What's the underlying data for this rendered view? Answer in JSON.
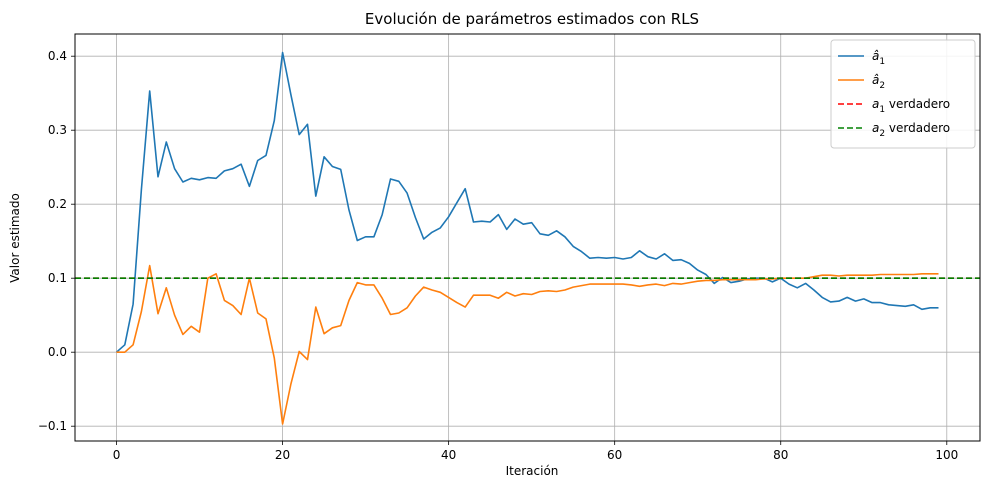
{
  "chart_data": {
    "type": "line",
    "title": "Evolución de parámetros estimados con RLS",
    "xlabel": "Iteración",
    "ylabel": "Valor estimado",
    "xlim": [
      -5,
      104
    ],
    "ylim": [
      -0.12,
      0.43
    ],
    "xticks": [
      0,
      20,
      40,
      60,
      80,
      100
    ],
    "yticks": [
      -0.1,
      0.0,
      0.1,
      0.2,
      0.3,
      0.4
    ],
    "xtick_labels": [
      "0",
      "20",
      "40",
      "60",
      "80",
      "100"
    ],
    "ytick_labels": [
      "−0.1",
      "0.0",
      "0.1",
      "0.2",
      "0.3",
      "0.4"
    ],
    "grid": true,
    "legend_position": "top-right",
    "series": [
      {
        "name": "â1",
        "color": "#1f77b4",
        "style": "solid",
        "x": [
          0,
          1,
          2,
          3,
          4,
          5,
          6,
          7,
          8,
          9,
          10,
          11,
          12,
          13,
          14,
          15,
          16,
          17,
          18,
          19,
          20,
          21,
          22,
          23,
          24,
          25,
          26,
          27,
          28,
          29,
          30,
          31,
          32,
          33,
          34,
          35,
          36,
          37,
          38,
          39,
          40,
          41,
          42,
          43,
          44,
          45,
          46,
          47,
          48,
          49,
          50,
          51,
          52,
          53,
          54,
          55,
          56,
          57,
          58,
          59,
          60,
          61,
          62,
          63,
          64,
          65,
          66,
          67,
          68,
          69,
          70,
          71,
          72,
          73,
          74,
          75,
          76,
          77,
          78,
          79,
          80,
          81,
          82,
          83,
          84,
          85,
          86,
          87,
          88,
          89,
          90,
          91,
          92,
          93,
          94,
          95,
          96,
          97,
          98,
          99
        ],
        "values": [
          0.0,
          0.01,
          0.065,
          0.22,
          0.353,
          0.237,
          0.284,
          0.248,
          0.23,
          0.235,
          0.233,
          0.236,
          0.235,
          0.245,
          0.248,
          0.254,
          0.224,
          0.259,
          0.266,
          0.313,
          0.405,
          0.348,
          0.294,
          0.308,
          0.211,
          0.264,
          0.251,
          0.247,
          0.192,
          0.151,
          0.156,
          0.156,
          0.186,
          0.234,
          0.231,
          0.215,
          0.182,
          0.153,
          0.162,
          0.168,
          0.183,
          0.202,
          0.221,
          0.176,
          0.177,
          0.176,
          0.186,
          0.166,
          0.18,
          0.173,
          0.175,
          0.16,
          0.158,
          0.164,
          0.156,
          0.143,
          0.136,
          0.127,
          0.128,
          0.127,
          0.128,
          0.126,
          0.128,
          0.137,
          0.129,
          0.126,
          0.133,
          0.124,
          0.125,
          0.12,
          0.111,
          0.105,
          0.093,
          0.101,
          0.094,
          0.096,
          0.099,
          0.1,
          0.1,
          0.095,
          0.1,
          0.092,
          0.087,
          0.093,
          0.084,
          0.074,
          0.068,
          0.069,
          0.074,
          0.069,
          0.072,
          0.067,
          0.067,
          0.064,
          0.063,
          0.062,
          0.064,
          0.058,
          0.06,
          0.06
        ]
      },
      {
        "name": "â2",
        "color": "#ff7f0e",
        "style": "solid",
        "x": [
          0,
          1,
          2,
          3,
          4,
          5,
          6,
          7,
          8,
          9,
          10,
          11,
          12,
          13,
          14,
          15,
          16,
          17,
          18,
          19,
          20,
          21,
          22,
          23,
          24,
          25,
          26,
          27,
          28,
          29,
          30,
          31,
          32,
          33,
          34,
          35,
          36,
          37,
          38,
          39,
          40,
          41,
          42,
          43,
          44,
          45,
          46,
          47,
          48,
          49,
          50,
          51,
          52,
          53,
          54,
          55,
          56,
          57,
          58,
          59,
          60,
          61,
          62,
          63,
          64,
          65,
          66,
          67,
          68,
          69,
          70,
          71,
          72,
          73,
          74,
          75,
          76,
          77,
          78,
          79,
          80,
          81,
          82,
          83,
          84,
          85,
          86,
          87,
          88,
          89,
          90,
          91,
          92,
          93,
          94,
          95,
          96,
          97,
          98,
          99
        ],
        "values": [
          0.0,
          0.0,
          0.01,
          0.055,
          0.117,
          0.052,
          0.087,
          0.05,
          0.024,
          0.035,
          0.027,
          0.1,
          0.106,
          0.07,
          0.063,
          0.051,
          0.1,
          0.053,
          0.045,
          -0.008,
          -0.097,
          -0.043,
          0.001,
          -0.01,
          0.061,
          0.025,
          0.033,
          0.036,
          0.07,
          0.094,
          0.091,
          0.091,
          0.073,
          0.051,
          0.053,
          0.06,
          0.076,
          0.088,
          0.084,
          0.081,
          0.074,
          0.067,
          0.061,
          0.077,
          0.077,
          0.077,
          0.073,
          0.081,
          0.076,
          0.079,
          0.078,
          0.082,
          0.083,
          0.082,
          0.084,
          0.088,
          0.09,
          0.092,
          0.092,
          0.092,
          0.092,
          0.092,
          0.091,
          0.089,
          0.091,
          0.092,
          0.09,
          0.093,
          0.092,
          0.094,
          0.096,
          0.097,
          0.097,
          0.098,
          0.098,
          0.098,
          0.098,
          0.098,
          0.099,
          0.099,
          0.1,
          0.1,
          0.1,
          0.1,
          0.102,
          0.104,
          0.104,
          0.103,
          0.104,
          0.104,
          0.104,
          0.104,
          0.105,
          0.105,
          0.105,
          0.105,
          0.105,
          0.106,
          0.106,
          0.106
        ]
      },
      {
        "name": "a1 verdadero",
        "color": "#ff0000",
        "style": "dashed",
        "hline": 0.1
      },
      {
        "name": "a2 verdadero",
        "color": "#008000",
        "style": "dashed",
        "hline": 0.1
      }
    ],
    "legend_entries": [
      {
        "base": "â",
        "sub": "1",
        "suffix": ""
      },
      {
        "base": "â",
        "sub": "2",
        "suffix": ""
      },
      {
        "base": "a",
        "sub": "1",
        "suffix": " verdadero"
      },
      {
        "base": "a",
        "sub": "2",
        "suffix": " verdadero"
      }
    ]
  }
}
